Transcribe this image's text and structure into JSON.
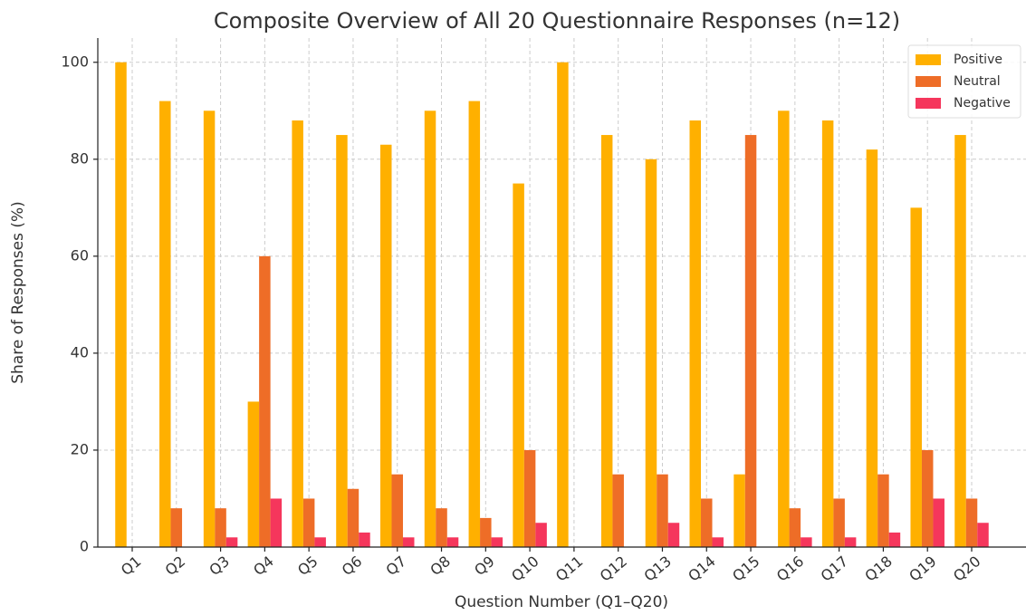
{
  "chart_data": {
    "type": "bar",
    "title": "Composite Overview of All 20 Questionnaire Responses (n=12)",
    "x_label": "Question Number (Q1–Q20)",
    "y_label": "Share of Responses (%)",
    "categories": [
      "Q1",
      "Q2",
      "Q3",
      "Q4",
      "Q5",
      "Q6",
      "Q7",
      "Q8",
      "Q9",
      "Q10",
      "Q11",
      "Q12",
      "Q13",
      "Q14",
      "Q15",
      "Q16",
      "Q17",
      "Q18",
      "Q19",
      "Q20"
    ],
    "series": [
      {
        "name": "Positive",
        "color": "#FFB000",
        "values": [
          100,
          92,
          90,
          30,
          88,
          85,
          83,
          90,
          92,
          75,
          100,
          85,
          80,
          88,
          15,
          90,
          88,
          82,
          70,
          85
        ]
      },
      {
        "name": "Neutral",
        "color": "#EE6D27",
        "values": [
          0,
          8,
          8,
          60,
          10,
          12,
          15,
          8,
          6,
          20,
          0,
          15,
          15,
          10,
          85,
          8,
          10,
          15,
          20,
          10
        ]
      },
      {
        "name": "Negative",
        "color": "#F5365C",
        "values": [
          0,
          0,
          2,
          10,
          2,
          3,
          2,
          2,
          2,
          5,
          0,
          0,
          5,
          2,
          0,
          2,
          2,
          3,
          10,
          5
        ]
      }
    ],
    "ylim": [
      0,
      105
    ],
    "yticks": [
      0,
      20,
      40,
      60,
      80,
      100
    ],
    "grid": true,
    "legend": "upper right"
  }
}
